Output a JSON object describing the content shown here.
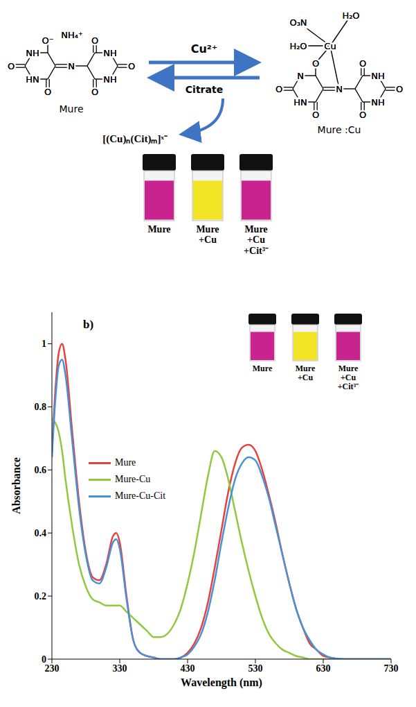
{
  "diagram": {
    "mure": {
      "label": "Mure",
      "atoms": [
        "O⁻",
        "NH₄⁺",
        "NH",
        "O",
        "HN",
        "O",
        "N",
        "O",
        "NH",
        "O",
        "NH",
        "O"
      ]
    },
    "complex": {
      "label": "Mure :Cu",
      "atoms": [
        "O₃N",
        "H₂O",
        "H₂O",
        "Cu",
        "O",
        "N",
        "O",
        "HN",
        "O",
        "N",
        "O",
        "NH",
        "O",
        "NH",
        "O"
      ]
    },
    "forward": "Cu²⁺",
    "reverse": "Citrate",
    "product": "[(Cu)ₙ(Cit)ₘ]ˣ⁻",
    "vials": [
      "Mure",
      "Mure +Cu",
      "Mure +Cu +Cit³⁻"
    ]
  },
  "chart_data": {
    "type": "line",
    "title": "b)",
    "x_label": "Wavelength (nm)",
    "y_label": "Absorbance",
    "annotations": [
      "Mure",
      "Mure +Cu",
      "Mure +Cu +Cit³⁻"
    ],
    "x": [
      230,
      235,
      240,
      245,
      250,
      260,
      270,
      280,
      290,
      300,
      310,
      320,
      325,
      330,
      340,
      350,
      360,
      370,
      380,
      390,
      400,
      410,
      420,
      430,
      440,
      450,
      460,
      470,
      480,
      490,
      500,
      510,
      520,
      530,
      540,
      550,
      560,
      570,
      580,
      590,
      600,
      610,
      620,
      630,
      640,
      660,
      700,
      730
    ],
    "series": [
      {
        "name": "Mure",
        "color": "#e8413c",
        "values": [
          0.66,
          0.85,
          0.97,
          1.0,
          0.95,
          0.72,
          0.5,
          0.34,
          0.26,
          0.25,
          0.3,
          0.39,
          0.4,
          0.37,
          0.2,
          0.06,
          0.02,
          0.01,
          0.005,
          0,
          0,
          0,
          0.005,
          0.02,
          0.05,
          0.1,
          0.18,
          0.29,
          0.41,
          0.53,
          0.62,
          0.67,
          0.68,
          0.66,
          0.6,
          0.52,
          0.43,
          0.33,
          0.24,
          0.16,
          0.1,
          0.05,
          0.03,
          0.01,
          0.005,
          0,
          0,
          0
        ]
      },
      {
        "name": "Mure-Cu",
        "color": "#92c83e",
        "values": [
          0.76,
          0.75,
          0.72,
          0.66,
          0.57,
          0.42,
          0.3,
          0.23,
          0.19,
          0.18,
          0.17,
          0.17,
          0.17,
          0.17,
          0.15,
          0.13,
          0.11,
          0.09,
          0.07,
          0.07,
          0.08,
          0.11,
          0.16,
          0.24,
          0.34,
          0.46,
          0.58,
          0.66,
          0.64,
          0.57,
          0.47,
          0.37,
          0.28,
          0.2,
          0.13,
          0.08,
          0.05,
          0.03,
          0.02,
          0.01,
          0.005,
          0,
          0,
          0,
          0,
          0,
          0,
          0
        ]
      },
      {
        "name": "Mure-Cu-Cit",
        "color": "#4a90d9",
        "values": [
          0.64,
          0.82,
          0.93,
          0.95,
          0.9,
          0.69,
          0.48,
          0.33,
          0.25,
          0.24,
          0.29,
          0.37,
          0.38,
          0.35,
          0.19,
          0.06,
          0.02,
          0.01,
          0.005,
          0,
          0,
          0,
          0.005,
          0.015,
          0.04,
          0.08,
          0.15,
          0.25,
          0.37,
          0.48,
          0.57,
          0.62,
          0.64,
          0.63,
          0.58,
          0.51,
          0.42,
          0.33,
          0.24,
          0.16,
          0.1,
          0.06,
          0.03,
          0.015,
          0.005,
          0,
          0,
          0
        ]
      }
    ],
    "xlim": [
      230,
      730
    ],
    "xticks": [
      230,
      330,
      430,
      530,
      630,
      730
    ],
    "ylim": [
      0,
      1.1
    ],
    "yticks": [
      0,
      0.2,
      0.4,
      0.6,
      0.8,
      1
    ],
    "grid": false,
    "legend": "left"
  }
}
